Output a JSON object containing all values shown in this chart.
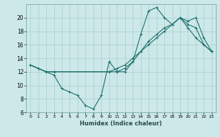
{
  "xlabel": "Humidex (Indice chaleur)",
  "bg_color": "#cce8e8",
  "grid_color": "#aacccc",
  "line_color": "#1a6e6a",
  "xlim": [
    -0.5,
    23.5
  ],
  "ylim": [
    6,
    22
  ],
  "yticks": [
    6,
    8,
    10,
    12,
    14,
    16,
    18,
    20
  ],
  "xticks": [
    0,
    1,
    2,
    3,
    4,
    5,
    6,
    7,
    8,
    9,
    10,
    11,
    12,
    13,
    14,
    15,
    16,
    17,
    18,
    19,
    20,
    21,
    22,
    23
  ],
  "line1_x": [
    0,
    1,
    2,
    3,
    4,
    5,
    6,
    7,
    8,
    9,
    10,
    11,
    12,
    13,
    14,
    15,
    16,
    17,
    18,
    19,
    20,
    21,
    22,
    23
  ],
  "line1_y": [
    13,
    12.5,
    12,
    11.5,
    9.5,
    9.0,
    8.5,
    7.0,
    6.5,
    8.5,
    13.5,
    12,
    12,
    13.5,
    17.5,
    21,
    21.5,
    20,
    19,
    20,
    18.5,
    17,
    16,
    15
  ],
  "line2_x": [
    0,
    1,
    2,
    3,
    10,
    11,
    12,
    13,
    14,
    15,
    16,
    17,
    18,
    19,
    20,
    21,
    22,
    23
  ],
  "line2_y": [
    13,
    12.5,
    12,
    12,
    12,
    12,
    12.5,
    13.5,
    15,
    16.5,
    17.5,
    18.5,
    19,
    20,
    19,
    18.5,
    16,
    15
  ],
  "line3_x": [
    0,
    1,
    2,
    3,
    10,
    11,
    12,
    13,
    14,
    15,
    16,
    17,
    18,
    19,
    20,
    21,
    22,
    23
  ],
  "line3_y": [
    13,
    12.5,
    12,
    12,
    12,
    12.5,
    13,
    14,
    15,
    16,
    17,
    18,
    19,
    20,
    19.5,
    20,
    17,
    15
  ]
}
